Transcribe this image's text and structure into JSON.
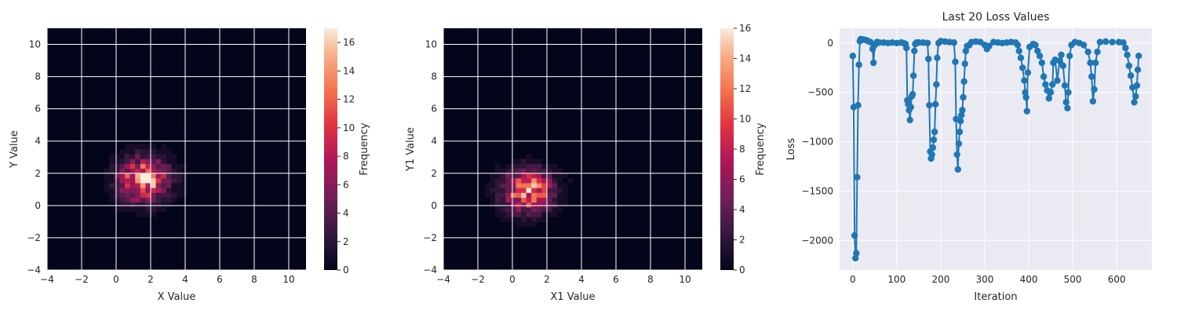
{
  "chart_data": [
    {
      "type": "heatmap",
      "title": "",
      "xlabel": "X Value",
      "ylabel": "Y Value",
      "xlim": [
        -4,
        11
      ],
      "ylim": [
        -4,
        11
      ],
      "xticks": [
        "−4",
        "−2",
        "0",
        "2",
        "4",
        "6",
        "8",
        "10"
      ],
      "yticks": [
        "−4",
        "−2",
        "0",
        "2",
        "4",
        "6",
        "8",
        "10"
      ],
      "grid": true,
      "colorbar": {
        "label": "Frequency",
        "min": 0,
        "max": 17,
        "ticks": [
          "0",
          "2",
          "4",
          "6",
          "8",
          "10",
          "12",
          "14",
          "16"
        ]
      },
      "distribution": {
        "center_x": 1.6,
        "center_y": 1.6,
        "spread_x": 0.95,
        "spread_y": 0.9,
        "peak": 17
      }
    },
    {
      "type": "heatmap",
      "title": "",
      "xlabel": "X1 Value",
      "ylabel": "Y1 Value",
      "xlim": [
        -4,
        11
      ],
      "ylim": [
        -4,
        11
      ],
      "xticks": [
        "−4",
        "−2",
        "0",
        "2",
        "4",
        "6",
        "8",
        "10"
      ],
      "yticks": [
        "−4",
        "−2",
        "0",
        "2",
        "4",
        "6",
        "8",
        "10"
      ],
      "grid": true,
      "colorbar": {
        "label": "Frequency",
        "min": 0,
        "max": 16,
        "ticks": [
          "0",
          "2",
          "4",
          "6",
          "8",
          "10",
          "12",
          "14",
          "16"
        ]
      },
      "distribution": {
        "center_x": 0.9,
        "center_y": 0.9,
        "spread_x": 0.95,
        "spread_y": 0.85,
        "peak": 16
      }
    },
    {
      "type": "line",
      "title": "Last 20 Loss Values",
      "xlabel": "Iteration",
      "ylabel": "Loss",
      "xlim": [
        -30,
        680
      ],
      "ylim": [
        -2300,
        150
      ],
      "xticks": [
        0,
        100,
        200,
        300,
        400,
        500,
        600
      ],
      "yticks": [
        0,
        -500,
        -1000,
        -1500,
        -2000
      ],
      "ytick_labels": [
        "0",
        "−500",
        "−1000",
        "−1500",
        "−2000"
      ],
      "grid": true,
      "marker": "circle",
      "points": [
        [
          0,
          -130
        ],
        [
          2,
          -650
        ],
        [
          4,
          -1950
        ],
        [
          6,
          -2180
        ],
        [
          8,
          -2130
        ],
        [
          10,
          -1360
        ],
        [
          12,
          -630
        ],
        [
          14,
          -220
        ],
        [
          16,
          20
        ],
        [
          18,
          40
        ],
        [
          20,
          30
        ],
        [
          25,
          35
        ],
        [
          30,
          30
        ],
        [
          35,
          20
        ],
        [
          40,
          10
        ],
        [
          45,
          -60
        ],
        [
          47,
          -200
        ],
        [
          50,
          -20
        ],
        [
          55,
          10
        ],
        [
          60,
          5
        ],
        [
          70,
          5
        ],
        [
          80,
          0
        ],
        [
          90,
          5
        ],
        [
          100,
          0
        ],
        [
          110,
          5
        ],
        [
          115,
          0
        ],
        [
          120,
          -10
        ],
        [
          122,
          -50
        ],
        [
          124,
          -580
        ],
        [
          126,
          -620
        ],
        [
          128,
          -680
        ],
        [
          130,
          -780
        ],
        [
          132,
          -650
        ],
        [
          134,
          -540
        ],
        [
          136,
          -520
        ],
        [
          138,
          -330
        ],
        [
          140,
          -80
        ],
        [
          142,
          -10
        ],
        [
          145,
          5
        ],
        [
          150,
          5
        ],
        [
          160,
          5
        ],
        [
          170,
          0
        ],
        [
          172,
          -160
        ],
        [
          174,
          -630
        ],
        [
          176,
          -1100
        ],
        [
          178,
          -1170
        ],
        [
          180,
          -1130
        ],
        [
          182,
          -1060
        ],
        [
          184,
          -980
        ],
        [
          186,
          -900
        ],
        [
          188,
          -620
        ],
        [
          190,
          -420
        ],
        [
          192,
          -150
        ],
        [
          195,
          0
        ],
        [
          200,
          20
        ],
        [
          210,
          15
        ],
        [
          220,
          10
        ],
        [
          230,
          5
        ],
        [
          233,
          -190
        ],
        [
          235,
          -770
        ],
        [
          237,
          -1130
        ],
        [
          239,
          -1280
        ],
        [
          241,
          -1020
        ],
        [
          243,
          -900
        ],
        [
          245,
          -790
        ],
        [
          247,
          -730
        ],
        [
          249,
          -680
        ],
        [
          251,
          -550
        ],
        [
          253,
          -390
        ],
        [
          255,
          -210
        ],
        [
          257,
          -80
        ],
        [
          260,
          -30
        ],
        [
          265,
          -20
        ],
        [
          270,
          10
        ],
        [
          280,
          15
        ],
        [
          290,
          10
        ],
        [
          300,
          -20
        ],
        [
          305,
          -60
        ],
        [
          310,
          -30
        ],
        [
          320,
          10
        ],
        [
          330,
          5
        ],
        [
          340,
          0
        ],
        [
          350,
          5
        ],
        [
          360,
          10
        ],
        [
          370,
          5
        ],
        [
          375,
          -20
        ],
        [
          378,
          -80
        ],
        [
          382,
          -150
        ],
        [
          386,
          -250
        ],
        [
          390,
          -380
        ],
        [
          392,
          -500
        ],
        [
          394,
          -550
        ],
        [
          396,
          -690
        ],
        [
          398,
          -300
        ],
        [
          402,
          -40
        ],
        [
          410,
          -10
        ],
        [
          415,
          -20
        ],
        [
          420,
          -80
        ],
        [
          425,
          -130
        ],
        [
          430,
          -200
        ],
        [
          434,
          -340
        ],
        [
          438,
          -420
        ],
        [
          442,
          -480
        ],
        [
          446,
          -560
        ],
        [
          450,
          -500
        ],
        [
          454,
          -420
        ],
        [
          456,
          -200
        ],
        [
          460,
          -170
        ],
        [
          465,
          -380
        ],
        [
          470,
          -180
        ],
        [
          474,
          -120
        ],
        [
          478,
          -230
        ],
        [
          482,
          -430
        ],
        [
          485,
          -600
        ],
        [
          488,
          -660
        ],
        [
          490,
          -500
        ],
        [
          493,
          -130
        ],
        [
          497,
          -20
        ],
        [
          505,
          10
        ],
        [
          515,
          0
        ],
        [
          525,
          -20
        ],
        [
          535,
          -90
        ],
        [
          540,
          -200
        ],
        [
          543,
          -340
        ],
        [
          546,
          -590
        ],
        [
          549,
          -470
        ],
        [
          552,
          -200
        ],
        [
          556,
          -90
        ],
        [
          562,
          10
        ],
        [
          575,
          15
        ],
        [
          590,
          10
        ],
        [
          605,
          10
        ],
        [
          615,
          5
        ],
        [
          620,
          -50
        ],
        [
          624,
          -120
        ],
        [
          628,
          -230
        ],
        [
          632,
          -330
        ],
        [
          636,
          -450
        ],
        [
          640,
          -600
        ],
        [
          643,
          -540
        ],
        [
          646,
          -430
        ],
        [
          648,
          -270
        ],
        [
          650,
          -130
        ]
      ]
    }
  ]
}
